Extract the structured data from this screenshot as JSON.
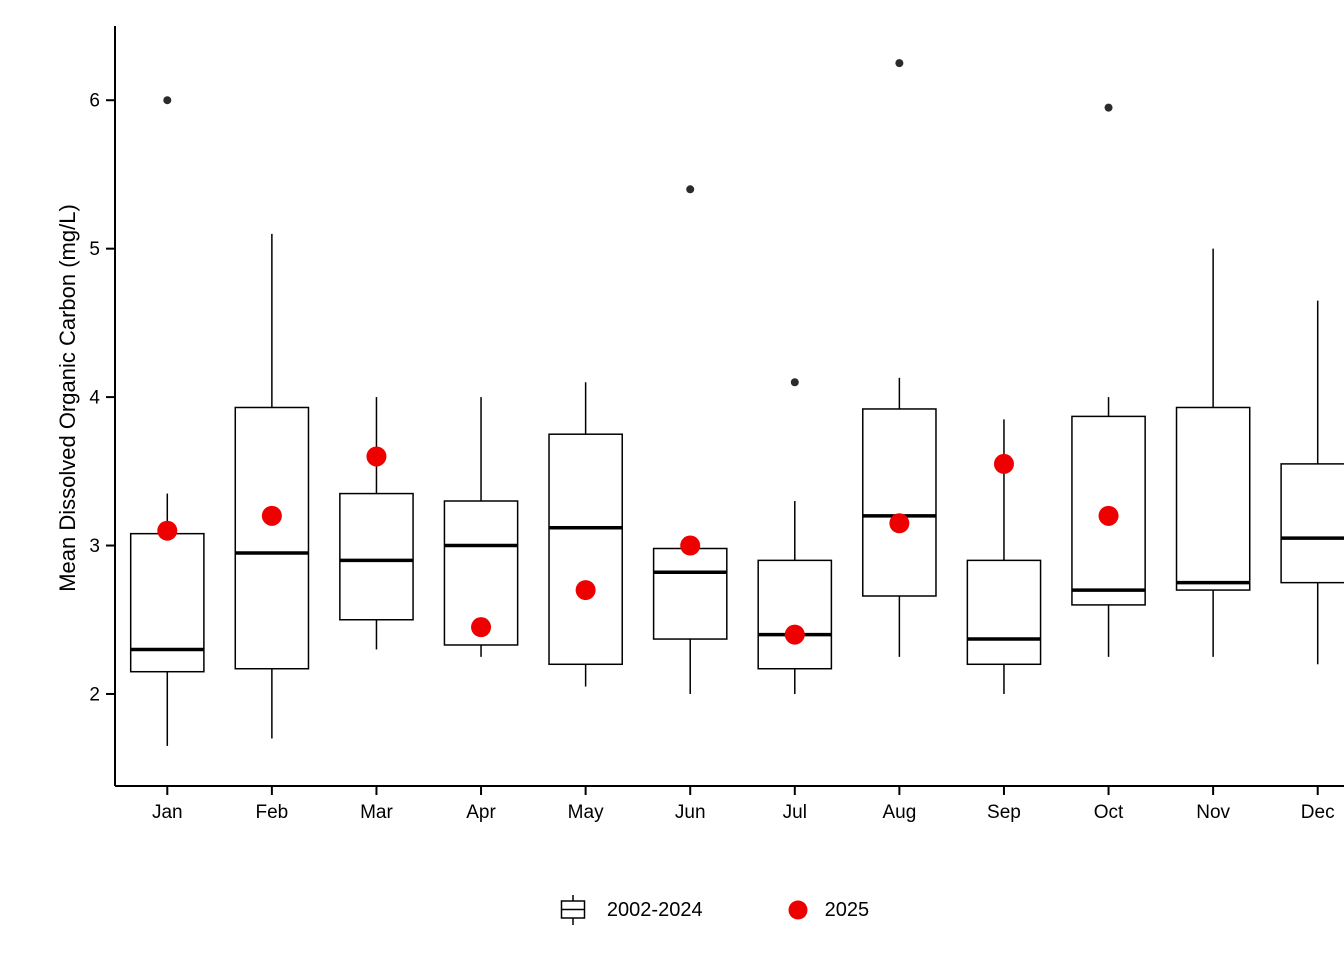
{
  "chart_data": {
    "type": "boxplot",
    "title": "",
    "xlabel": "",
    "ylabel": "Mean Dissolved Organic Carbon (mg/L)",
    "ylim": [
      1.38,
      6.5
    ],
    "yticks": [
      2,
      3,
      4,
      5,
      6
    ],
    "grid": false,
    "legend_position": "bottom",
    "categories": [
      "Jan",
      "Feb",
      "Mar",
      "Apr",
      "May",
      "Jun",
      "Jul",
      "Aug",
      "Sep",
      "Oct",
      "Nov",
      "Dec"
    ],
    "series": [
      {
        "name": "2002-2024",
        "type": "box",
        "stroke": "#000000",
        "fill": "#ffffff",
        "boxes": [
          {
            "low": 1.65,
            "q1": 2.15,
            "median": 2.3,
            "q3": 3.08,
            "high": 3.35,
            "outliers": [
              6.0
            ]
          },
          {
            "low": 1.7,
            "q1": 2.17,
            "median": 2.95,
            "q3": 3.93,
            "high": 5.1,
            "outliers": []
          },
          {
            "low": 2.3,
            "q1": 2.5,
            "median": 2.9,
            "q3": 3.35,
            "high": 4.0,
            "outliers": []
          },
          {
            "low": 2.25,
            "q1": 2.33,
            "median": 3.0,
            "q3": 3.3,
            "high": 4.0,
            "outliers": []
          },
          {
            "low": 2.05,
            "q1": 2.2,
            "median": 3.12,
            "q3": 3.75,
            "high": 4.1,
            "outliers": []
          },
          {
            "low": 2.0,
            "q1": 2.37,
            "median": 2.82,
            "q3": 2.98,
            "high": 3.0,
            "outliers": [
              5.4
            ]
          },
          {
            "low": 2.0,
            "q1": 2.17,
            "median": 2.4,
            "q3": 2.9,
            "high": 3.3,
            "outliers": [
              4.1
            ]
          },
          {
            "low": 2.25,
            "q1": 2.66,
            "median": 3.2,
            "q3": 3.92,
            "high": 4.13,
            "outliers": [
              6.25
            ]
          },
          {
            "low": 2.0,
            "q1": 2.2,
            "median": 2.37,
            "q3": 2.9,
            "high": 3.85,
            "outliers": []
          },
          {
            "low": 2.25,
            "q1": 2.6,
            "median": 2.7,
            "q3": 3.87,
            "high": 4.0,
            "outliers": [
              5.95
            ]
          },
          {
            "low": 2.25,
            "q1": 2.7,
            "median": 2.75,
            "q3": 3.93,
            "high": 5.0,
            "outliers": []
          },
          {
            "low": 2.2,
            "q1": 2.75,
            "median": 3.05,
            "q3": 3.55,
            "high": 4.65,
            "outliers": []
          }
        ]
      },
      {
        "name": "2025",
        "type": "point",
        "color": "#ee0000",
        "values": [
          3.1,
          3.2,
          3.6,
          2.45,
          2.7,
          3.0,
          2.4,
          3.15,
          3.55,
          3.2,
          null,
          null
        ]
      }
    ],
    "outlier_color": "#2b2b2b",
    "legend": {
      "entries": [
        {
          "label": "2002-2024",
          "glyph": "boxplot"
        },
        {
          "label": "2025",
          "glyph": "point",
          "color": "#ee0000"
        }
      ]
    }
  }
}
